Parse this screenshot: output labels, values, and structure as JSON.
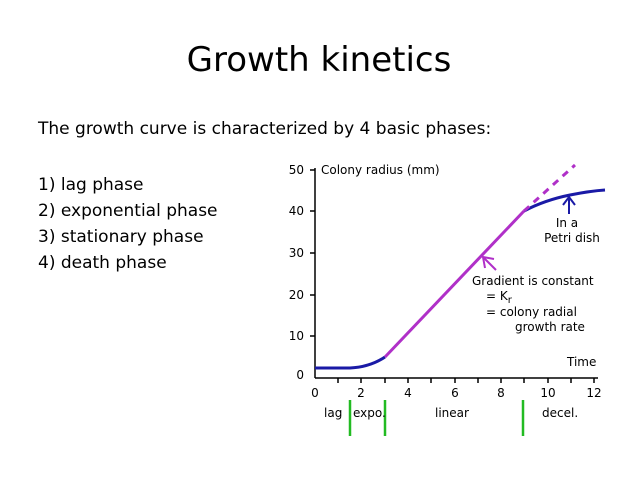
{
  "slide": {
    "title": "Growth kinetics",
    "subtitle": "The growth curve is characterized by 4 basic phases:",
    "phases": [
      "1) lag phase",
      "2) exponential phase",
      "3) stationary phase",
      "4) death phase"
    ]
  },
  "diagram": {
    "ylabel": "Colony radius (mm)",
    "xlabel": "Time",
    "y_ticks": [
      "50",
      "40",
      "30",
      "20",
      "10",
      "0"
    ],
    "x_ticks": [
      "0",
      "2",
      "4",
      "6",
      "8",
      "10",
      "12"
    ],
    "annotation_dish": [
      "In a",
      "Petri dish"
    ],
    "annotation_gradient": [
      "Gradient is constant",
      "= K",
      "r",
      "= colony radial",
      "growth rate"
    ],
    "phase_labels": [
      "lag",
      "expo.",
      "linear",
      "decel."
    ],
    "colors": {
      "curve": "#1a1aa6",
      "linear": "#b030c8",
      "phase_divider": "#22bb22",
      "arrow_dish": "#1a1aa6",
      "arrow_gradient": "#b030c8"
    }
  }
}
